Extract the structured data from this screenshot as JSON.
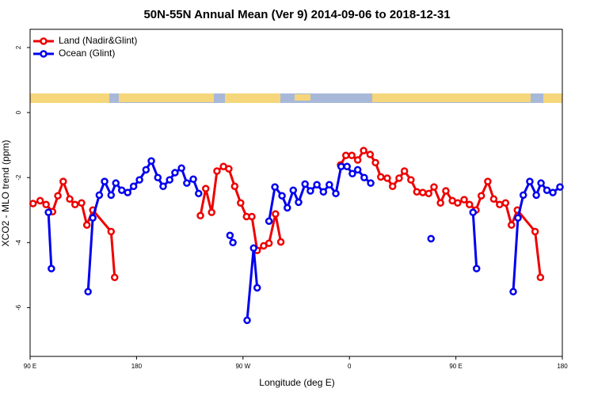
{
  "chart_data": {
    "type": "line",
    "title": "50N-55N Annual Mean (Ver 9)   2014-09-06 to 2018-12-31",
    "x_label": "Longitude (deg E)",
    "y_label": "XCO2 - MLO trend (ppm)",
    "xlim": [
      90,
      540
    ],
    "ylim": [
      -7.5,
      2.56
    ],
    "xticks": [
      {
        "value": 90,
        "label": "90 E"
      },
      180,
      {
        "value": 270,
        "label": "90 W"
      },
      0,
      {
        "value": 450,
        "label": "90 E"
      },
      {
        "value": 540,
        "label": "180"
      }
    ],
    "yticks": [
      2,
      0,
      -2,
      -4,
      -6
    ],
    "legend": "top-left",
    "series": [
      {
        "name": "Land (Nadir&Glint)",
        "color": "#ee0000",
        "x": [
          92.5,
          98.5,
          103.5,
          109,
          113.5,
          118,
          123.5,
          128,
          133.5,
          138,
          143,
          158.5,
          161.5,
          null,
          234,
          238.5,
          243.5,
          248,
          253.5,
          258,
          263,
          268,
          273,
          277.5,
          282,
          287.5,
          292,
          297.5,
          302,
          null,
          352.5,
          357,
          362,
          367,
          372,
          377.5,
          382,
          386.5,
          392,
          396.5,
          402,
          406.5,
          412,
          417,
          422,
          427,
          431.5,
          437,
          441.5,
          447,
          451.5,
          457,
          461.5,
          467,
          471.5,
          477,
          482,
          487,
          492,
          497,
          502,
          517,
          521.5
        ],
        "values": [
          -2.8,
          -2.71,
          -2.83,
          -3.05,
          -2.56,
          -2.12,
          -2.66,
          -2.83,
          -2.78,
          -3.46,
          -3.0,
          -3.66,
          -5.07,
          null,
          -3.17,
          -2.34,
          -3.07,
          -1.8,
          -1.66,
          -1.73,
          -2.27,
          -2.78,
          -3.2,
          -3.2,
          -4.24,
          -4.1,
          -4.02,
          -3.12,
          -3.98,
          null,
          -1.61,
          -1.32,
          -1.32,
          -1.46,
          -1.17,
          -1.29,
          -1.54,
          -1.98,
          -2.02,
          -2.27,
          -2.02,
          -1.8,
          -2.07,
          -2.44,
          -2.46,
          -2.49,
          -2.29,
          -2.78,
          -2.41,
          -2.71,
          -2.78,
          -2.68,
          -2.83,
          -3.0,
          -2.56,
          -2.12,
          -2.66,
          -2.83,
          -2.78,
          -3.46,
          -3.0,
          -3.66,
          -5.07
        ]
      },
      {
        "name": "Ocean (Glint)",
        "color": "#0000ee",
        "x": [
          105.5,
          108,
          null,
          139,
          143,
          148.5,
          153,
          158.5,
          162.5,
          167.5,
          172.5,
          177.5,
          182.5,
          188,
          192.5,
          198,
          202.5,
          208,
          212.5,
          218,
          222.5,
          228,
          232.5,
          null,
          259,
          261.5,
          null,
          273.5,
          279,
          282,
          null,
          292,
          297,
          303,
          307.5,
          312.5,
          317,
          322.5,
          327,
          332.5,
          338,
          343,
          348.5,
          353,
          358,
          362.5,
          367,
          372.5,
          378,
          null,
          429,
          null,
          464.5,
          467.5,
          null,
          498.5,
          502.5,
          507,
          512.5,
          518,
          522,
          527,
          532,
          538
        ],
        "values": [
          -3.07,
          -4.8,
          null,
          -5.51,
          -3.24,
          -2.54,
          -2.12,
          -2.54,
          -2.17,
          -2.39,
          -2.46,
          -2.27,
          -2.07,
          -1.76,
          -1.49,
          -2.0,
          -2.27,
          -2.07,
          -1.85,
          -1.71,
          -2.17,
          -2.05,
          -2.49,
          null,
          -3.78,
          -4.0,
          null,
          -6.39,
          -4.17,
          -5.39,
          null,
          -3.34,
          -2.29,
          -2.56,
          -2.93,
          -2.39,
          -2.76,
          -2.2,
          -2.41,
          -2.22,
          -2.44,
          -2.22,
          -2.49,
          -1.66,
          -1.66,
          -1.88,
          -1.76,
          -2.0,
          -2.17,
          null,
          -3.88,
          null,
          -3.07,
          -4.8,
          null,
          -5.51,
          -3.24,
          -2.54,
          -2.12,
          -2.54,
          -2.17,
          -2.39,
          -2.46,
          -2.29
        ]
      }
    ]
  }
}
